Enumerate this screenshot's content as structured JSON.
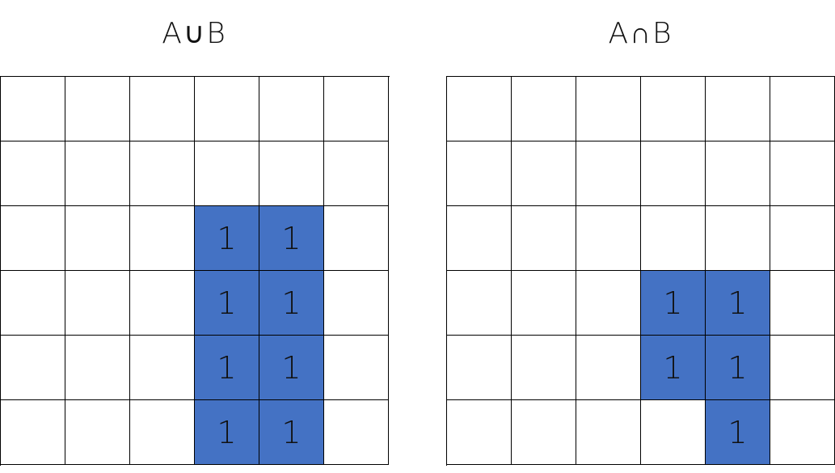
{
  "panels": [
    {
      "title": "A∪B",
      "fill_color": "#4472c4",
      "rows": [
        [
          "",
          "",
          "",
          "",
          "",
          ""
        ],
        [
          "",
          "",
          "",
          "",
          "",
          ""
        ],
        [
          "",
          "",
          "",
          "1",
          "1",
          ""
        ],
        [
          "",
          "",
          "",
          "1",
          "1",
          ""
        ],
        [
          "",
          "",
          "",
          "1",
          "1",
          ""
        ],
        [
          "",
          "",
          "",
          "1",
          "1",
          ""
        ]
      ]
    },
    {
      "title": "A∩B",
      "fill_color": "#4472c4",
      "rows": [
        [
          "",
          "",
          "",
          "",
          "",
          ""
        ],
        [
          "",
          "",
          "",
          "",
          "",
          ""
        ],
        [
          "",
          "",
          "",
          "",
          "",
          ""
        ],
        [
          "",
          "",
          "",
          "1",
          "1",
          ""
        ],
        [
          "",
          "",
          "",
          "1",
          "1",
          ""
        ],
        [
          "",
          "",
          "",
          "",
          "1",
          ""
        ]
      ]
    }
  ]
}
